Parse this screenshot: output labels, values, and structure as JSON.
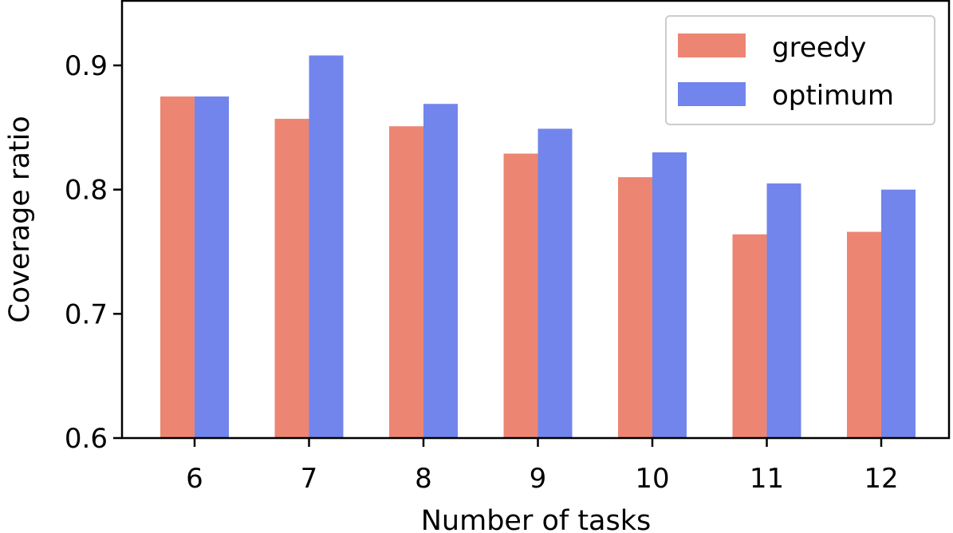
{
  "chart_data": {
    "type": "bar",
    "title": "",
    "xlabel": "Number of tasks",
    "ylabel": "Coverage ratio",
    "categories": [
      "6",
      "7",
      "8",
      "9",
      "10",
      "11",
      "12"
    ],
    "series": [
      {
        "name": "greedy",
        "color": "#ec8672",
        "values": [
          0.875,
          0.857,
          0.851,
          0.829,
          0.81,
          0.764,
          0.766
        ]
      },
      {
        "name": "optimum",
        "color": "#7285ec",
        "values": [
          0.875,
          0.908,
          0.869,
          0.849,
          0.83,
          0.805,
          0.8
        ]
      }
    ],
    "ylim": [
      0.6,
      0.952
    ],
    "yticks": [
      0.6,
      0.7,
      0.8,
      0.9
    ],
    "ytick_labels": [
      "0.6",
      "0.7",
      "0.8",
      "0.9"
    ],
    "grid": false,
    "legend_position": "top-right"
  }
}
